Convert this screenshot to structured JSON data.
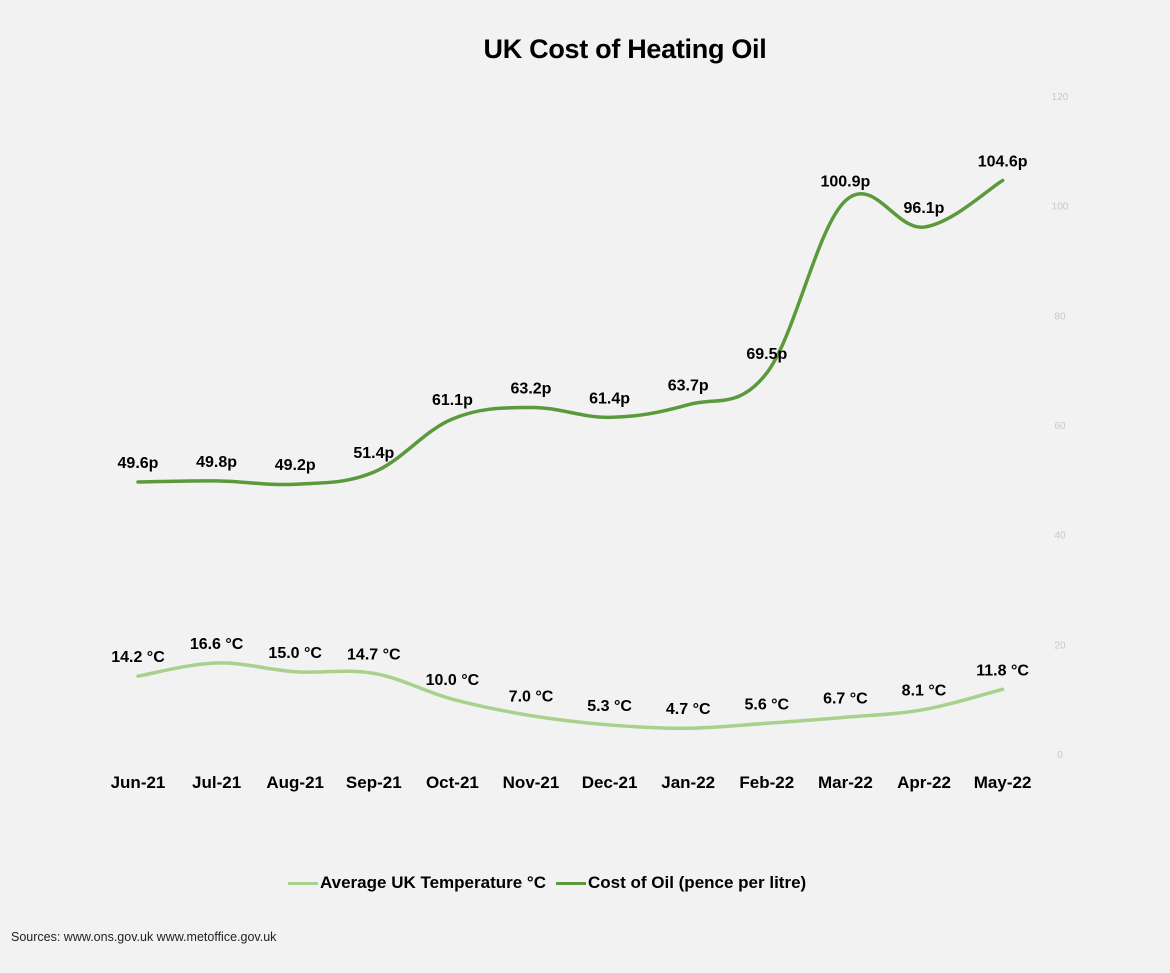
{
  "chart_data": {
    "type": "line",
    "title": "UK Cost of Heating Oil",
    "categories": [
      "Jun-21",
      "Jul-21",
      "Aug-21",
      "Sep-21",
      "Oct-21",
      "Nov-21",
      "Dec-21",
      "Jan-22",
      "Feb-22",
      "Mar-22",
      "Apr-22",
      "May-22"
    ],
    "series": [
      {
        "name": "Average UK Temperature °C",
        "values": [
          14.2,
          16.6,
          15.0,
          14.7,
          10.0,
          7.0,
          5.3,
          4.7,
          5.6,
          6.7,
          8.1,
          11.8
        ],
        "labels": [
          "14.2 °C",
          "16.6 °C",
          "15.0 °C",
          "14.7 °C",
          "10.0 °C",
          "7.0 °C",
          "5.3 °C",
          "4.7 °C",
          "5.6 °C",
          "6.7 °C",
          "8.1 °C",
          "11.8 °C"
        ],
        "color": "#a9d18e"
      },
      {
        "name": "Cost of Oil (pence per litre)",
        "values": [
          49.6,
          49.8,
          49.2,
          51.4,
          61.1,
          63.2,
          61.4,
          63.7,
          69.5,
          100.9,
          96.1,
          104.6
        ],
        "labels": [
          "49.6p",
          "49.8p",
          "49.2p",
          "51.4p",
          "61.1p",
          "63.2p",
          "61.4p",
          "63.7p",
          "69.5p",
          "100.9p",
          "96.1p",
          "104.6p"
        ],
        "color": "#5b9a3c"
      }
    ],
    "y_axis": {
      "ticks": [
        "0",
        "20",
        "40",
        "60",
        "80",
        "100",
        "120"
      ],
      "tick_values": [
        0,
        20,
        40,
        60,
        80,
        100,
        120
      ],
      "ylim": [
        0,
        120
      ],
      "position": "right"
    },
    "grid": false,
    "legend_position": "bottom"
  },
  "source": "Sources: www.ons.gov.uk www.metoffice.gov.uk"
}
